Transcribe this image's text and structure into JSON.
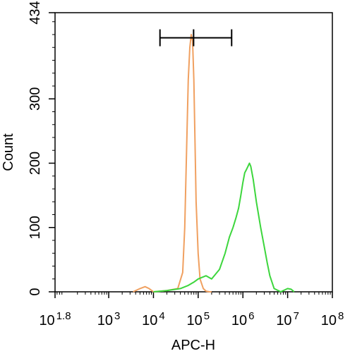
{
  "chart_data": {
    "type": "line",
    "title": "",
    "xlabel": "APC-H",
    "ylabel": "Count",
    "x_scale": "log",
    "xlim": [
      63.1,
      100000000
    ],
    "ylim": [
      0,
      434
    ],
    "x_ticks": [
      {
        "base": "10",
        "exp": "1.8",
        "value": 63.1
      },
      {
        "base": "10",
        "exp": "3",
        "value": 1000
      },
      {
        "base": "10",
        "exp": "4",
        "value": 10000
      },
      {
        "base": "10",
        "exp": "5",
        "value": 100000
      },
      {
        "base": "10",
        "exp": "6",
        "value": 1000000
      },
      {
        "base": "10",
        "exp": "7",
        "value": 10000000
      },
      {
        "base": "10",
        "exp": "8",
        "value": 100000000
      }
    ],
    "y_ticks": [
      {
        "label": "0",
        "value": 0
      },
      {
        "label": "100",
        "value": 100
      },
      {
        "label": "200",
        "value": 200
      },
      {
        "label": "300",
        "value": 300
      },
      {
        "label": "434",
        "value": 434
      }
    ],
    "grid": false,
    "legend": "none",
    "gate": {
      "x_start": 14000,
      "x_mid": 79000,
      "x_end": 560000,
      "y": 395
    },
    "series": [
      {
        "color": "#f0a060",
        "x": [
          3500,
          5000,
          6500,
          8000,
          10000,
          20000,
          35000,
          45000,
          50000,
          55000,
          60000,
          65000,
          70000,
          75000,
          80000,
          85000,
          90000,
          100000,
          110000,
          130000,
          150000,
          180000,
          200000
        ],
        "y": [
          0,
          5,
          8,
          5,
          0,
          2,
          5,
          30,
          100,
          220,
          330,
          380,
          400,
          390,
          330,
          230,
          140,
          60,
          20,
          5,
          1,
          0,
          0
        ]
      },
      {
        "color": "#3dd63d",
        "x": [
          10000,
          20000,
          40000,
          60000,
          80000,
          100000,
          150000,
          200000,
          300000,
          400000,
          500000,
          600000,
          700000,
          800000,
          900000,
          1000000,
          1100000,
          1200000,
          1300000,
          1400000,
          1500000,
          1700000,
          2000000,
          2500000,
          3000000,
          3500000,
          4000000,
          5000000,
          7000000,
          10000000,
          12000000,
          14000000
        ],
        "y": [
          0,
          2,
          5,
          10,
          15,
          20,
          25,
          20,
          35,
          60,
          85,
          100,
          115,
          130,
          150,
          170,
          185,
          190,
          195,
          200,
          195,
          175,
          140,
          100,
          70,
          45,
          25,
          5,
          0,
          5,
          4,
          0
        ]
      }
    ]
  }
}
